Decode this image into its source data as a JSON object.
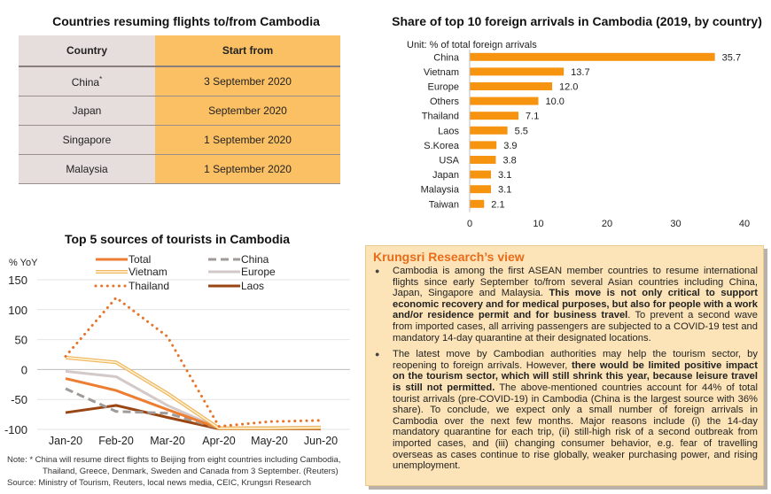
{
  "table": {
    "title": "Countries resuming flights to/from Cambodia",
    "headers": [
      "Country",
      "Start from"
    ],
    "rows": [
      {
        "country": "China",
        "note_mark": "*",
        "start": "3 September 2020"
      },
      {
        "country": "Japan",
        "note_mark": "",
        "start": "September 2020"
      },
      {
        "country": "Singapore",
        "note_mark": "",
        "start": "1 September 2020"
      },
      {
        "country": "Malaysia",
        "note_mark": "",
        "start": "1 September 2020"
      }
    ],
    "colors": {
      "country_col": "#e6dedd",
      "start_col": "#fcc064"
    }
  },
  "chart_data": [
    {
      "type": "bar",
      "orientation": "horizontal",
      "title": "Share of top 10 foreign arrivals in Cambodia (2019, by country)",
      "unit_label": "Unit: % of total foreign arrivals",
      "categories": [
        "China",
        "Vietnam",
        "Europe",
        "Others",
        "Thailand",
        "Laos",
        "S.Korea",
        "USA",
        "Japan",
        "Malaysia",
        "Taiwan"
      ],
      "values": [
        35.7,
        13.7,
        12.0,
        10.0,
        7.1,
        5.5,
        3.9,
        3.8,
        3.1,
        3.1,
        2.1
      ],
      "value_labels": [
        "35.7",
        "13.7",
        "12.0",
        "10.0",
        "7.1",
        "5.5",
        "3.9",
        "3.8",
        "3.1",
        "3.1",
        "2.1"
      ],
      "xlim": [
        0,
        40
      ],
      "xticks": [
        0,
        10,
        20,
        30,
        40
      ],
      "color": "#f7940f",
      "grid": false
    },
    {
      "type": "line",
      "title": "Top 5 sources of tourists in Cambodia",
      "ylabel": "% YoY",
      "x": [
        "Jan-20",
        "Feb-20",
        "Mar-20",
        "Apr-20",
        "May-20",
        "Jun-20"
      ],
      "ylim": [
        -100,
        150
      ],
      "yticks": [
        150,
        100,
        50,
        0,
        -50,
        -100
      ],
      "grid": true,
      "legend_position": "top",
      "series": [
        {
          "name": "Total",
          "color": "#ed7d31",
          "style": "solid",
          "values": [
            -15,
            -35,
            -67,
            -98,
            -98,
            -98
          ]
        },
        {
          "name": "China",
          "color": "#a09a98",
          "style": "dashed",
          "values": [
            -32,
            -70,
            -73,
            -98,
            -97,
            -97
          ]
        },
        {
          "name": "Vietnam",
          "color": "#f0b860",
          "style": "double",
          "values": [
            20,
            12,
            -40,
            -98,
            -98,
            -97
          ]
        },
        {
          "name": "Europe",
          "color": "#d3c9c8",
          "style": "solid",
          "values": [
            -3,
            -12,
            -60,
            -98,
            -97,
            -96
          ]
        },
        {
          "name": "Thailand",
          "color": "#e8742a",
          "style": "dotted",
          "values": [
            22,
            120,
            55,
            -95,
            -87,
            -85
          ]
        },
        {
          "name": "Laos",
          "color": "#9a4612",
          "style": "solid",
          "values": [
            -72,
            -60,
            -80,
            -99,
            -99,
            -99
          ]
        }
      ]
    }
  ],
  "notes": {
    "note_line1": "Note: * China will resume direct flights to Beijing from eight countries including Cambodia,",
    "note_line2": "Thailand, Greece, Denmark, Sweden and Canada from 3 September. (Reuters)",
    "source": "Source: Ministry of Tourism, Reuters, local news media, CEIC, Krungsri Research"
  },
  "view": {
    "title": "Krungsri Research’s view",
    "bullets": [
      {
        "parts": [
          {
            "text": "Cambodia is among the first ASEAN member countries to resume international flights since early September to/from several Asian countries including China, Japan, Singapore and Malaysia. ",
            "bold": false
          },
          {
            "text": "This move is not only critical to support economic recovery and for medical purposes, but also for people with a work and/or residence permit and for business travel",
            "bold": true
          },
          {
            "text": ". To prevent a second wave from imported cases, all arriving passengers are subjected to a COVID-19 test and mandatory 14-day quarantine at their designated locations.",
            "bold": false
          }
        ]
      },
      {
        "parts": [
          {
            "text": "The latest move by Cambodian authorities may help the tourism sector, by reopening to foreign arrivals. However, ",
            "bold": false
          },
          {
            "text": "there would be limited positive impact on the tourism sector, which will still shrink this year, because leisure travel is still not permitted.",
            "bold": true
          },
          {
            "text": " The above-mentioned countries account for 44% of total tourist arrivals (pre-COVID-19) in Cambodia (China is the largest source with 36% share). To conclude, we expect only a small number of foreign arrivals in Cambodia over the next few months. Major reasons include (i) the 14-day mandatory quarantine for each trip, (ii) still-high risk of a second outbreak from imported cases, and (iii) changing consumer behavior, e.g. fear of travelling overseas as cases continue to rise globally, weaker purchasing power, and rising unemployment.",
            "bold": false
          }
        ]
      }
    ]
  }
}
